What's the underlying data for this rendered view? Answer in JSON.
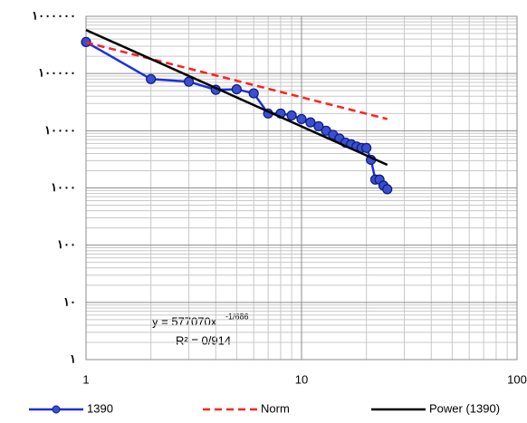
{
  "chart_data": {
    "type": "line",
    "log_x": true,
    "log_y": true,
    "grid": true,
    "minor_grid": true,
    "legend": "bottom",
    "xlim": [
      1,
      100
    ],
    "xticks": [
      1,
      10,
      100
    ],
    "ylim": [
      1,
      1000000
    ],
    "yticks": [
      {
        "value": 1,
        "label": "۱"
      },
      {
        "value": 10,
        "label": "۱۰"
      },
      {
        "value": 100,
        "label": "۱۰۰"
      },
      {
        "value": 1000,
        "label": "۱۰۰۰"
      },
      {
        "value": 10000,
        "label": "۱۰۰۰۰"
      },
      {
        "value": 100000,
        "label": "۱۰۰۰۰۰"
      },
      {
        "value": 1000000,
        "label": "۱۰۰۰۰۰۰"
      }
    ],
    "series": [
      {
        "name": "1390",
        "color": "#1a2fe0",
        "marker": "circle",
        "line_style": "solid",
        "x": [
          1,
          2,
          3,
          4,
          5,
          6,
          7,
          8,
          9,
          10,
          11,
          12,
          13,
          14,
          15,
          16,
          17,
          18,
          19,
          20,
          21,
          22,
          23,
          24,
          25
        ],
        "values": [
          355000,
          80000,
          72000,
          52000,
          53000,
          45000,
          20000,
          20000,
          18500,
          16000,
          14000,
          12000,
          10000,
          8500,
          7300,
          6200,
          5800,
          5300,
          5000,
          5000,
          3100,
          1400,
          1400,
          1100,
          950
        ]
      },
      {
        "name": "Norm",
        "color": "#ff2020",
        "line_style": "dashed",
        "x": [
          1,
          25
        ],
        "values": [
          350000,
          16000
        ]
      },
      {
        "name": "Power (1390)",
        "color": "#000000",
        "line_style": "solid",
        "x": [
          1,
          25
        ],
        "values": [
          577070,
          2537
        ]
      }
    ],
    "annotations": {
      "equation": "y = 577070x",
      "exponent": "-1/686",
      "r_squared": "R² = 0/914"
    }
  }
}
